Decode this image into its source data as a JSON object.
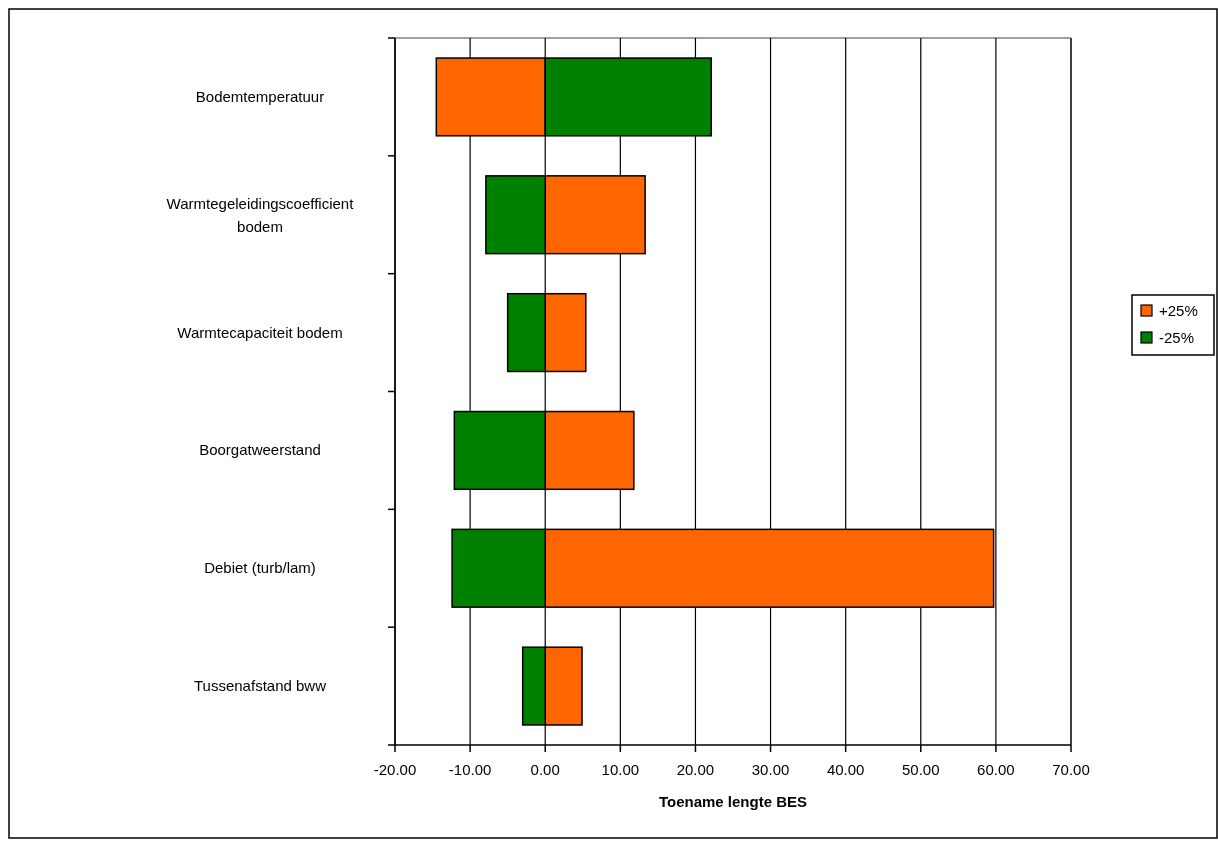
{
  "chart_data": {
    "type": "bar",
    "orientation": "horizontal",
    "xlabel": "Toename lengte BES",
    "categories": [
      "Bodemtemperatuur",
      "Warmtegeleidingscoefficient bodem",
      "Warmtecapaciteit bodem",
      "Boorgatweerstand",
      "Debiet (turb/lam)",
      "Tussenafstand bww"
    ],
    "series": [
      {
        "name": "+25%",
        "color": "#ff6600",
        "values": [
          -14.5,
          13.3,
          5.4,
          11.8,
          59.7,
          4.9
        ]
      },
      {
        "name": "-25%",
        "color": "#008000",
        "values": [
          22.1,
          -7.9,
          -5.0,
          -12.1,
          -12.4,
          -3.0
        ]
      }
    ],
    "xlim": [
      -20,
      70
    ],
    "xticks": [
      {
        "value": -20,
        "label": "-20.00"
      },
      {
        "value": -10,
        "label": "-10.00"
      },
      {
        "value": 0,
        "label": "0.00"
      },
      {
        "value": 10,
        "label": "10.00"
      },
      {
        "value": 20,
        "label": "20.00"
      },
      {
        "value": 30,
        "label": "30.00"
      },
      {
        "value": 40,
        "label": "40.00"
      },
      {
        "value": 50,
        "label": "50.00"
      },
      {
        "value": 60,
        "label": "60.00"
      },
      {
        "value": 70,
        "label": "70.00"
      }
    ],
    "stacked": true,
    "grid": "x",
    "legend": "right"
  }
}
